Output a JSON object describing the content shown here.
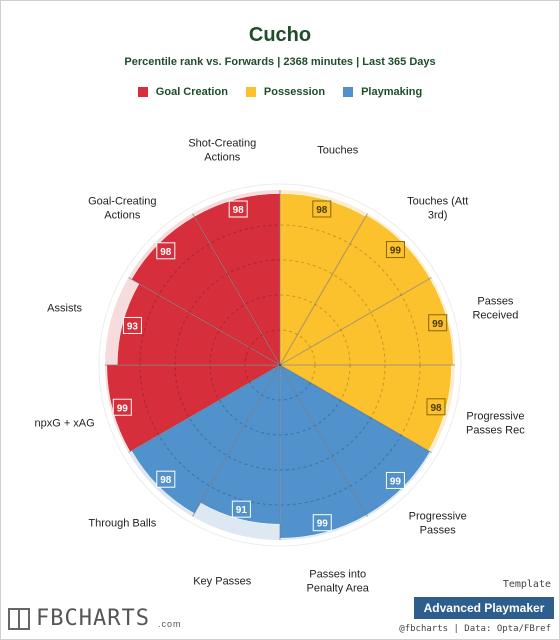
{
  "title": "Cucho",
  "subtitle": "Percentile rank vs. Forwards | 2368 minutes | Last 365 Days",
  "legend": [
    {
      "label": "Goal Creation",
      "color": "#d62f3b"
    },
    {
      "label": "Possession",
      "color": "#fcc22d"
    },
    {
      "label": "Playmaking",
      "color": "#5191cc"
    }
  ],
  "chart_data": {
    "type": "polar-bar",
    "title": "Cucho",
    "subtitle": "Percentile rank vs. Forwards | 2368 minutes | Last 365 Days",
    "rlim": [
      0,
      100
    ],
    "grid": true,
    "categories": [
      "Touches",
      "Touches (Att 3rd)",
      "Passes Received",
      "Progressive Passes Rec",
      "Progressive Passes",
      "Passes into Penalty Area",
      "Key Passes",
      "Through Balls",
      "npxG + xAG",
      "Assists",
      "Goal-Creating Actions",
      "Shot-Creating Actions"
    ],
    "values": [
      98,
      99,
      99,
      98,
      99,
      99,
      91,
      98,
      99,
      93,
      98,
      98
    ],
    "groups": [
      "Possession",
      "Possession",
      "Possession",
      "Possession",
      "Playmaking",
      "Playmaking",
      "Playmaking",
      "Playmaking",
      "Goal Creation",
      "Goal Creation",
      "Goal Creation",
      "Goal Creation"
    ],
    "labels_display": [
      [
        "Touches"
      ],
      [
        "Touches (Att",
        "3rd)"
      ],
      [
        "Passes",
        "Received"
      ],
      [
        "Progressive",
        "Passes Rec"
      ],
      [
        "Progressive",
        "Passes"
      ],
      [
        "Passes into",
        "Penalty Area"
      ],
      [
        "Key Passes"
      ],
      [
        "Through Balls"
      ],
      [
        "npxG + xAG"
      ],
      [
        "Assists"
      ],
      [
        "Goal-Creating",
        "Actions"
      ],
      [
        "Shot-Creating",
        "Actions"
      ]
    ],
    "group_colors": {
      "Goal Creation": {
        "fill": "#d62f3b",
        "bg": "#f7dcdd"
      },
      "Possession": {
        "fill": "#fcc22d",
        "bg": "#fbeed0"
      },
      "Playmaking": {
        "fill": "#5191cc",
        "bg": "#dde8f3"
      }
    }
  },
  "footer": {
    "logo_text": "FBCHARTS",
    "logo_suffix": ".com",
    "template_label": "Template",
    "template_name": "Advanced Playmaker",
    "credit": "@fbcharts | Data: Opta/FBref"
  }
}
